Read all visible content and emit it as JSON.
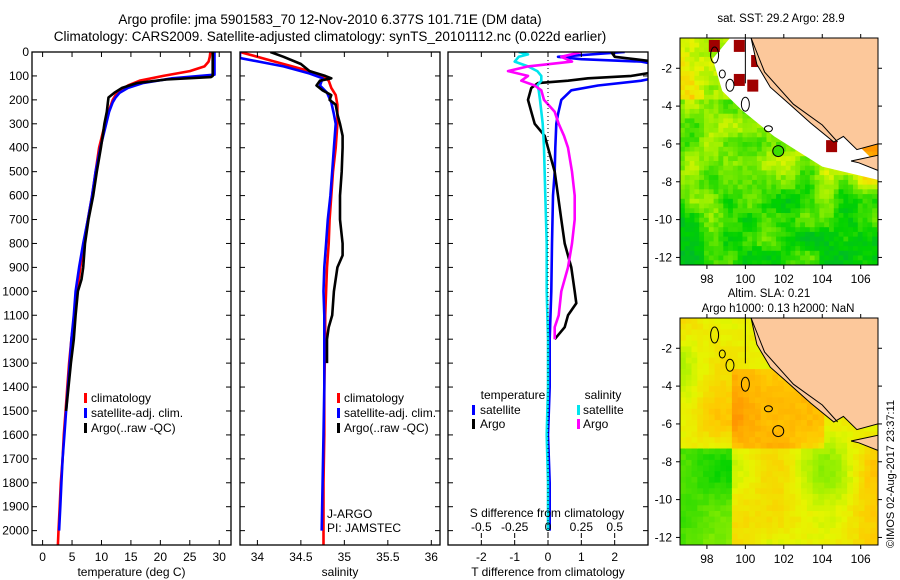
{
  "header": {
    "title_line1": "Argo profile: jma 5901583_70 12-Nov-2010 6.377S 101.71E (DM data)",
    "title_line2": "Climatology: CARS2009. Satellite-adjusted climatology: synTS_20101112.nc (0.022d earlier)"
  },
  "credit": "©IMOS 02-Aug-2017 23:37:11",
  "colors": {
    "climatology": "#ff0000",
    "satellite": "#0000ff",
    "argo": "#000000",
    "s_satellite": "#00e5ee",
    "s_argo": "#ff00ff",
    "land": "#fcc89b"
  },
  "chart_data": [
    {
      "type": "line",
      "name": "temperature-profile",
      "xlabel": "temperature (deg C)",
      "ylabel": "",
      "xlim": [
        -1.8,
        32
      ],
      "ylim": [
        2060,
        0
      ],
      "xticks": [
        0,
        5,
        10,
        15,
        20,
        25,
        30
      ],
      "yticks": [
        0,
        100,
        200,
        300,
        400,
        500,
        600,
        700,
        800,
        900,
        1000,
        1100,
        1200,
        1300,
        1400,
        1500,
        1600,
        1700,
        1800,
        1900,
        2000
      ],
      "legend": [
        "climatology",
        "satellite-adj. clim.",
        "Argo(..raw -QC)"
      ],
      "legend_position": "lower-center",
      "series": [
        {
          "name": "climatology",
          "color": "#ff0000",
          "depth": [
            0,
            20,
            40,
            60,
            80,
            100,
            120,
            140,
            160,
            180,
            200,
            250,
            300,
            400,
            500,
            600,
            700,
            800,
            900,
            1000,
            1100,
            1200,
            1300,
            1400,
            1500,
            1600,
            1700,
            1800,
            1900,
            2000,
            2060
          ],
          "values": [
            28.5,
            28.4,
            28.2,
            27.5,
            25,
            20.5,
            16.5,
            14.5,
            13.2,
            12.4,
            11.9,
            11.2,
            10.6,
            9.6,
            9.0,
            8.4,
            7.7,
            7.0,
            6.4,
            5.9,
            5.4,
            4.9,
            4.5,
            4.2,
            3.9,
            3.6,
            3.4,
            3.1,
            2.9,
            2.7,
            2.6
          ]
        },
        {
          "name": "satellite-adj. clim.",
          "color": "#0000ff",
          "depth": [
            0,
            20,
            40,
            60,
            80,
            95,
            110,
            130,
            150,
            170,
            190,
            210,
            250,
            300,
            400,
            500,
            600,
            700,
            800,
            900,
            1000,
            1100,
            1200,
            1300,
            1400,
            1500,
            1600,
            1700,
            1800,
            1900,
            2000
          ],
          "values": [
            29.2,
            29.2,
            29.2,
            29.2,
            29.2,
            29.2,
            22,
            17,
            14.5,
            13.1,
            12.4,
            11.9,
            11.3,
            10.8,
            9.8,
            9.0,
            8.4,
            7.7,
            6.9,
            6.2,
            5.6,
            5.3,
            4.9,
            4.6,
            4.3,
            4.0,
            3.7,
            3.4,
            3.2,
            3.0,
            2.8
          ]
        },
        {
          "name": "Argo(..raw -QC)",
          "color": "#000000",
          "depth": [
            0,
            20,
            40,
            60,
            80,
            100,
            105,
            115,
            130,
            150,
            170,
            190,
            210,
            250,
            300,
            350,
            400,
            500,
            600,
            700,
            800,
            900,
            950,
            1000,
            1100,
            1200,
            1300,
            1400,
            1500
          ],
          "values": [
            28.9,
            28.9,
            28.9,
            28.9,
            28.9,
            28.9,
            28.6,
            21,
            16,
            13.5,
            12.2,
            11.2,
            11.1,
            10.9,
            10.5,
            10.2,
            9.9,
            9.2,
            8.6,
            7.8,
            7.2,
            6.9,
            6.6,
            6.0,
            5.6,
            5.3,
            4.8,
            4.4,
            4.0
          ]
        }
      ]
    },
    {
      "type": "line",
      "name": "salinity-profile",
      "xlabel": "salinity",
      "xlim": [
        33.8,
        36.1
      ],
      "ylim": [
        2060,
        0
      ],
      "xticks": [
        34,
        34.5,
        35,
        35.5,
        36
      ],
      "legend": [
        "climatology",
        "satellite-adj. clim.",
        "Argo(..raw -QC)"
      ],
      "legend_position": "lower-right",
      "annotations": [
        "J-ARGO",
        "PI: JAMSTEC"
      ],
      "series": [
        {
          "name": "climatology",
          "color": "#ff0000",
          "depth": [
            0,
            40,
            80,
            100,
            120,
            150,
            180,
            220,
            300,
            400,
            500,
            600,
            700,
            800,
            900,
            1000,
            1100,
            1200,
            1400,
            1600,
            1800,
            2000,
            2060
          ],
          "values": [
            33.8,
            34.2,
            34.6,
            34.75,
            34.82,
            34.85,
            34.9,
            34.92,
            34.92,
            34.9,
            34.87,
            34.85,
            34.83,
            34.82,
            34.8,
            34.79,
            34.78,
            34.78,
            34.77,
            34.77,
            34.76,
            34.76,
            34.76
          ]
        },
        {
          "name": "satellite-adj. clim.",
          "color": "#0000ff",
          "depth": [
            0,
            25,
            60,
            90,
            110,
            140,
            170,
            210,
            260,
            300,
            400,
            500,
            600,
            700,
            800,
            900,
            1000,
            1100,
            1200,
            1400,
            1600,
            1800,
            2000
          ],
          "values": [
            33.8,
            33.8,
            34.3,
            34.6,
            34.75,
            34.72,
            34.8,
            34.85,
            34.88,
            34.9,
            34.88,
            34.86,
            34.84,
            34.81,
            34.79,
            34.77,
            34.76,
            34.77,
            34.77,
            34.77,
            34.76,
            34.75,
            34.74
          ]
        },
        {
          "name": "Argo(..raw -QC)",
          "color": "#000000",
          "depth": [
            0,
            20,
            50,
            80,
            100,
            110,
            120,
            140,
            160,
            180,
            200,
            220,
            260,
            300,
            350,
            400,
            500,
            600,
            700,
            800,
            850,
            900,
            1000,
            1100,
            1150,
            1200,
            1300
          ],
          "values": [
            34.15,
            34.3,
            34.5,
            34.6,
            34.78,
            34.85,
            34.72,
            34.68,
            34.75,
            34.85,
            34.83,
            34.9,
            34.92,
            34.95,
            34.98,
            34.98,
            34.97,
            34.95,
            34.95,
            34.98,
            34.98,
            34.92,
            34.88,
            34.86,
            34.82,
            34.8,
            34.8
          ]
        }
      ]
    },
    {
      "type": "line",
      "name": "difference-profile",
      "xlabel": "T difference from climatology",
      "x2label": "S difference from climatology",
      "xlim": [
        -3,
        3
      ],
      "x2lim": [
        -0.75,
        0.75
      ],
      "ylim": [
        2060,
        0
      ],
      "xticks": [
        -2,
        -1,
        0,
        1,
        2
      ],
      "x2ticks": [
        -0.5,
        -0.25,
        0,
        0.25,
        0.5
      ],
      "legend_groups": [
        {
          "title": "temperature",
          "items": [
            {
              "label": "satellite",
              "color": "#0000ff"
            },
            {
              "label": "Argo",
              "color": "#000000"
            }
          ]
        },
        {
          "title": "salinity",
          "items": [
            {
              "label": "satellite",
              "color": "#00e5ee"
            },
            {
              "label": "Argo",
              "color": "#ff00ff"
            }
          ]
        }
      ],
      "series": [
        {
          "name": "T satellite",
          "color": "#0000ff",
          "axis": "T",
          "depth": [
            0,
            20,
            30,
            40,
            60,
            80,
            100,
            120,
            140,
            160,
            200,
            260,
            300,
            400,
            500,
            600,
            800,
            1000,
            1200,
            1400,
            1600,
            1800,
            2000
          ],
          "values": [
            2.3,
            0.3,
            1.0,
            2.8,
            3.5,
            3.4,
            3.5,
            2.8,
            1.5,
            0.7,
            0.4,
            0.3,
            0.25,
            0.22,
            0.2,
            0.15,
            0.12,
            0.1,
            0.05,
            0.05,
            0.0,
            0.05,
            0.05
          ]
        },
        {
          "name": "T Argo",
          "color": "#000000",
          "axis": "T",
          "depth": [
            0,
            20,
            40,
            60,
            80,
            100,
            110,
            120,
            130,
            150,
            200,
            250,
            300,
            350,
            400,
            500,
            600,
            700,
            800,
            900,
            1000,
            1050,
            1100,
            1150,
            1200
          ],
          "values": [
            1.9,
            2.0,
            3.2,
            3.5,
            3.4,
            2.5,
            1.2,
            0.6,
            -0.3,
            -0.5,
            -0.6,
            -0.5,
            -0.4,
            -0.1,
            0.0,
            0.2,
            0.3,
            0.4,
            0.5,
            0.7,
            0.8,
            0.85,
            0.6,
            0.5,
            0.2
          ]
        },
        {
          "name": "S satellite",
          "color": "#00e5ee",
          "axis": "S",
          "depth": [
            0,
            10,
            20,
            40,
            60,
            80,
            100,
            120,
            140,
            160,
            200,
            300,
            400,
            600,
            800,
            1000,
            1200,
            1400,
            1600,
            1800,
            2000
          ],
          "values": [
            -0.22,
            -0.15,
            -0.22,
            -0.25,
            -0.15,
            -0.08,
            -0.05,
            -0.05,
            -0.08,
            -0.07,
            -0.06,
            -0.04,
            -0.03,
            -0.02,
            -0.01,
            -0.01,
            0.0,
            0.0,
            -0.01,
            0.0,
            0.0
          ]
        },
        {
          "name": "S Argo",
          "color": "#ff00ff",
          "axis": "S",
          "depth": [
            0,
            20,
            40,
            60,
            80,
            100,
            120,
            140,
            160,
            200,
            250,
            300,
            350,
            400,
            500,
            600,
            700,
            800,
            900,
            1000,
            1100,
            1150,
            1200
          ],
          "values": [
            0.25,
            0.1,
            0.18,
            -0.15,
            -0.3,
            -0.15,
            -0.2,
            -0.1,
            -0.05,
            -0.03,
            0.05,
            0.08,
            0.12,
            0.15,
            0.18,
            0.2,
            0.2,
            0.18,
            0.15,
            0.1,
            0.08,
            0.05,
            0.05
          ]
        }
      ]
    },
    {
      "type": "heatmap",
      "name": "sst-map",
      "title": "sat. SST: 29.2 Argo: 28.9",
      "xlim": [
        96.6,
        106.9
      ],
      "ylim": [
        -12.4,
        -0.4
      ],
      "xticks": [
        98,
        100,
        102,
        104,
        106
      ],
      "yticks": [
        -2,
        -4,
        -6,
        -8,
        -10,
        -12
      ],
      "marker": {
        "lon": 101.71,
        "lat": -6.377
      }
    },
    {
      "type": "heatmap",
      "name": "sla-map",
      "title_line1": "Altim. SLA: 0.21",
      "title_line2": "Argo h1000: 0.13 h2000: NaN",
      "xlim": [
        96.6,
        106.9
      ],
      "ylim": [
        -12.4,
        -0.4
      ],
      "xticks": [
        98,
        100,
        102,
        104,
        106
      ],
      "yticks": [
        -2,
        -4,
        -6,
        -8,
        -10,
        -12
      ],
      "marker": {
        "lon": 101.71,
        "lat": -6.377
      }
    }
  ]
}
